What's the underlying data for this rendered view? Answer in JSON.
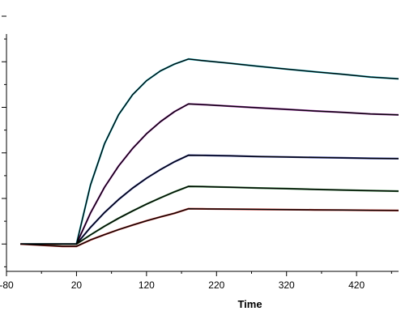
{
  "chart_data": {
    "type": "line",
    "title": "",
    "xlabel": "Time",
    "ylabel": "",
    "xlim": [
      -80,
      480
    ],
    "ylim": [
      -12,
      100
    ],
    "x_ticks": [
      -80,
      20,
      120,
      220,
      320,
      420
    ],
    "x_tick_labels": [
      "-80",
      "20",
      "120",
      "220",
      "320",
      "420"
    ],
    "y_ticks": [
      0,
      20,
      40,
      60,
      80,
      100
    ],
    "grid": false,
    "legend": "none",
    "x_points": [
      -60,
      0,
      20,
      40,
      60,
      80,
      100,
      120,
      140,
      160,
      180,
      200,
      240,
      280,
      320,
      360,
      400,
      440,
      480
    ],
    "series": [
      {
        "color": "#1fb5c4",
        "values": [
          0,
          0,
          0,
          25.9,
          44.0,
          56.7,
          65.5,
          71.7,
          76.0,
          79.0,
          81.2,
          80.5,
          79.3,
          78.0,
          76.8,
          75.6,
          74.5,
          73.3,
          72.5
        ]
      },
      {
        "color": "#9b2fa3",
        "values": [
          0,
          0,
          0,
          13.6,
          24.9,
          34.2,
          41.9,
          48.4,
          53.7,
          58.1,
          61.5,
          61.2,
          60.5,
          59.8,
          59.1,
          58.4,
          57.8,
          57.1,
          56.7
        ]
      },
      {
        "color": "#2f3a9e",
        "values": [
          0,
          0,
          0,
          7.3,
          13.8,
          19.5,
          24.5,
          28.9,
          32.7,
          36.1,
          39.0,
          38.9,
          38.7,
          38.4,
          38.2,
          38.0,
          37.8,
          37.6,
          37.5
        ]
      },
      {
        "color": "#2f7a3a",
        "values": [
          0,
          0,
          0,
          4.0,
          7.8,
          11.3,
          14.5,
          17.5,
          20.3,
          22.9,
          25.3,
          25.2,
          24.9,
          24.6,
          24.3,
          24.0,
          23.7,
          23.4,
          23.2
        ]
      },
      {
        "color": "#c0302a",
        "values": [
          0,
          -1,
          -1,
          1.8,
          4.1,
          6.3,
          8.3,
          10.2,
          11.9,
          13.5,
          15.5,
          15.4,
          15.3,
          15.2,
          15.1,
          15.0,
          14.9,
          14.8,
          14.7
        ]
      }
    ],
    "fit_color": "#000000"
  }
}
